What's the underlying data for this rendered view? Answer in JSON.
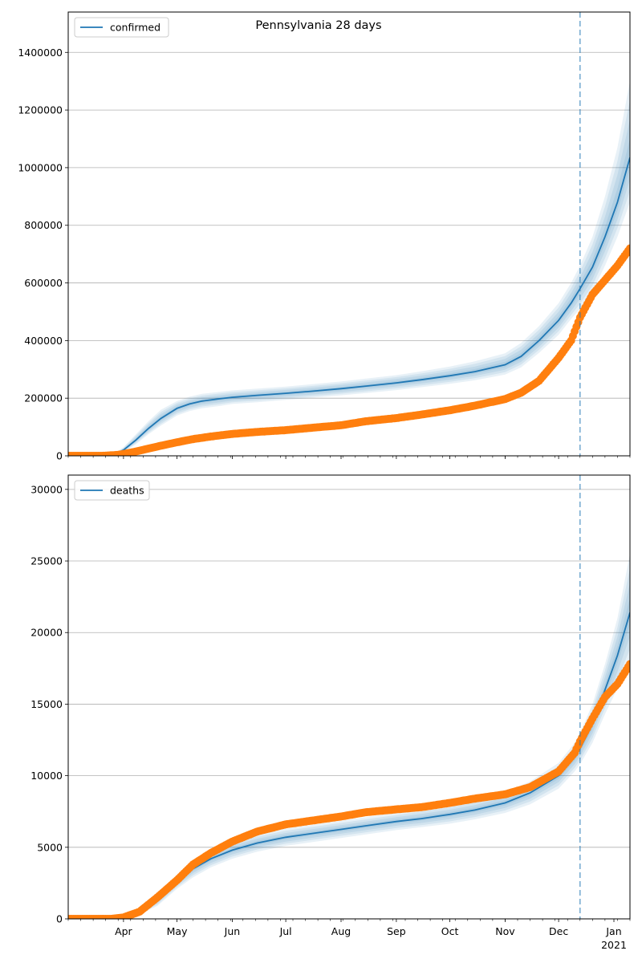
{
  "title": "Pennsylvania 28 days",
  "chart_data": [
    {
      "type": "line",
      "legend": [
        "confirmed"
      ],
      "legend_position": "top-left",
      "grid": "y",
      "xlim": [
        "2020-03-01",
        "2021-01-10"
      ],
      "ylim": [
        0,
        1540000
      ],
      "y_ticks": [
        0,
        200000,
        400000,
        600000,
        800000,
        1000000,
        1200000,
        1400000
      ],
      "vline": "2020-12-13",
      "series": [
        {
          "name": "confirmed",
          "color": "#1f77b4",
          "kind": "model line with shaded bands",
          "dates": [
            "2020-03-01",
            "2020-03-15",
            "2020-03-25",
            "2020-04-01",
            "2020-04-08",
            "2020-04-15",
            "2020-04-22",
            "2020-05-01",
            "2020-05-08",
            "2020-05-15",
            "2020-05-25",
            "2020-06-01",
            "2020-06-15",
            "2020-07-01",
            "2020-07-15",
            "2020-08-01",
            "2020-08-15",
            "2020-09-01",
            "2020-09-15",
            "2020-10-01",
            "2020-10-15",
            "2020-11-01",
            "2020-11-10",
            "2020-11-20",
            "2020-12-01",
            "2020-12-08",
            "2020-12-13",
            "2020-12-20",
            "2020-12-27",
            "2021-01-03",
            "2021-01-10"
          ],
          "values": [
            0,
            0,
            0,
            20000,
            55000,
            95000,
            130000,
            165000,
            180000,
            190000,
            198000,
            203000,
            210000,
            217000,
            224000,
            233000,
            242000,
            253000,
            264000,
            278000,
            292000,
            316000,
            345000,
            400000,
            470000,
            530000,
            580000,
            655000,
            760000,
            880000,
            1035000
          ],
          "band_high": [
            0,
            0,
            0,
            30000,
            75000,
            120000,
            160000,
            190000,
            205000,
            215000,
            222000,
            227000,
            233000,
            240000,
            248000,
            258000,
            268000,
            280000,
            293000,
            310000,
            328000,
            356000,
            392000,
            450000,
            530000,
            600000,
            660000,
            760000,
            900000,
            1070000,
            1300000
          ],
          "band_low": [
            0,
            0,
            0,
            12000,
            40000,
            75000,
            105000,
            140000,
            155000,
            165000,
            173000,
            180000,
            186000,
            194000,
            201000,
            210000,
            218000,
            228000,
            238000,
            250000,
            262000,
            282000,
            307000,
            357000,
            420000,
            475000,
            510000,
            570000,
            660000,
            760000,
            880000
          ]
        },
        {
          "name": "",
          "color": "#ff7f0e",
          "kind": "observed points",
          "dates": [
            "2020-03-01",
            "2020-03-20",
            "2020-03-28",
            "2020-04-01",
            "2020-04-08",
            "2020-04-15",
            "2020-04-22",
            "2020-05-01",
            "2020-05-10",
            "2020-05-20",
            "2020-06-01",
            "2020-06-15",
            "2020-07-01",
            "2020-07-15",
            "2020-08-01",
            "2020-08-15",
            "2020-09-01",
            "2020-09-15",
            "2020-10-01",
            "2020-10-15",
            "2020-11-01",
            "2020-11-10",
            "2020-11-20",
            "2020-12-01",
            "2020-12-08",
            "2020-12-13",
            "2020-12-20",
            "2020-12-27",
            "2021-01-03",
            "2021-01-10"
          ],
          "values": [
            0,
            0,
            3000,
            6000,
            15000,
            25000,
            35000,
            47000,
            58000,
            67000,
            76000,
            83000,
            89000,
            97000,
            106000,
            120000,
            131000,
            143000,
            158000,
            174000,
            197000,
            219000,
            260000,
            340000,
            400000,
            480000,
            560000,
            610000,
            660000,
            720000
          ]
        }
      ],
      "x_tick_labels": [
        "Apr",
        "May",
        "Jun",
        "Jul",
        "Aug",
        "Sep",
        "Oct",
        "Nov",
        "Dec"
      ]
    },
    {
      "type": "line",
      "legend": [
        "deaths"
      ],
      "legend_position": "top-left",
      "grid": "y",
      "xlim": [
        "2020-03-01",
        "2021-01-10"
      ],
      "ylim": [
        0,
        31000
      ],
      "y_ticks": [
        0,
        5000,
        10000,
        15000,
        20000,
        25000,
        30000
      ],
      "vline": "2020-12-13",
      "series": [
        {
          "name": "deaths",
          "color": "#1f77b4",
          "kind": "model line with shaded bands",
          "dates": [
            "2020-03-01",
            "2020-03-25",
            "2020-04-01",
            "2020-04-10",
            "2020-04-20",
            "2020-05-01",
            "2020-05-10",
            "2020-05-20",
            "2020-06-01",
            "2020-06-15",
            "2020-07-01",
            "2020-07-15",
            "2020-08-01",
            "2020-08-15",
            "2020-09-01",
            "2020-09-15",
            "2020-10-01",
            "2020-10-15",
            "2020-11-01",
            "2020-11-15",
            "2020-12-01",
            "2020-12-10",
            "2020-12-13",
            "2020-12-20",
            "2020-12-27",
            "2021-01-03",
            "2021-01-10"
          ],
          "values": [
            0,
            0,
            150,
            500,
            1300,
            2600,
            3500,
            4200,
            4800,
            5300,
            5700,
            5950,
            6250,
            6500,
            6800,
            7000,
            7300,
            7600,
            8100,
            8800,
            10000,
            11300,
            11900,
            13600,
            16000,
            18400,
            21400
          ],
          "band_high": [
            0,
            0,
            250,
            700,
            1700,
            3100,
            4100,
            4800,
            5400,
            5900,
            6300,
            6550,
            6850,
            7100,
            7400,
            7650,
            7950,
            8300,
            8850,
            9600,
            10900,
            12300,
            13000,
            15000,
            17800,
            21000,
            25500
          ],
          "band_low": [
            0,
            0,
            80,
            300,
            900,
            2100,
            2900,
            3600,
            4200,
            4700,
            5100,
            5350,
            5650,
            5900,
            6200,
            6400,
            6650,
            6950,
            7400,
            8000,
            9100,
            10300,
            10800,
            12300,
            14300,
            16100,
            18000
          ]
        },
        {
          "name": "",
          "color": "#ff7f0e",
          "kind": "observed points",
          "dates": [
            "2020-03-01",
            "2020-03-25",
            "2020-04-01",
            "2020-04-10",
            "2020-04-20",
            "2020-05-01",
            "2020-05-10",
            "2020-05-20",
            "2020-06-01",
            "2020-06-15",
            "2020-07-01",
            "2020-07-15",
            "2020-08-01",
            "2020-08-15",
            "2020-09-01",
            "2020-09-15",
            "2020-10-01",
            "2020-10-15",
            "2020-11-01",
            "2020-11-15",
            "2020-12-01",
            "2020-12-10",
            "2020-12-13",
            "2020-12-20",
            "2020-12-27",
            "2021-01-03",
            "2021-01-10"
          ],
          "values": [
            0,
            0,
            100,
            500,
            1500,
            2700,
            3800,
            4600,
            5400,
            6100,
            6600,
            6850,
            7150,
            7450,
            7650,
            7800,
            8100,
            8400,
            8700,
            9200,
            10300,
            11600,
            12400,
            14000,
            15500,
            16400,
            17800
          ]
        }
      ],
      "x_tick_labels": [
        "Apr",
        "May",
        "Jun",
        "Jul",
        "Aug",
        "Sep",
        "Oct",
        "Nov",
        "Dec",
        "Jan"
      ],
      "x_tick_year": "2021"
    }
  ]
}
